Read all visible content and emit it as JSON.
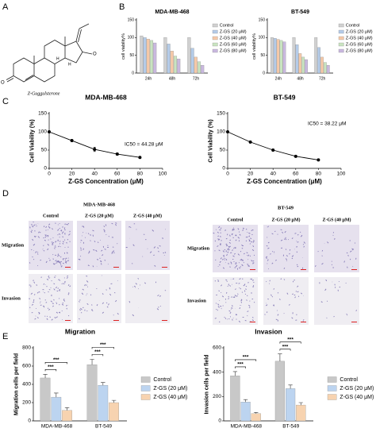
{
  "panel_labels": [
    "A",
    "B",
    "C",
    "D",
    "E"
  ],
  "structure": {
    "caption": "Z-Guggulsterone",
    "atoms": [
      "O",
      "O",
      "H",
      "H"
    ]
  },
  "micrographs": [
    {
      "title": "MDA-MB-468",
      "columns": [
        "Control",
        "Z-GS (20 μM)",
        "Z-GS (40 μM)"
      ],
      "rows": [
        "Migration",
        "Invasion"
      ]
    },
    {
      "title": "BT-549",
      "columns": [
        "Control",
        "Z-GS (20 μM)",
        "Z-GS (40 μM)"
      ],
      "rows": [
        "Migration",
        "Invasion"
      ]
    }
  ],
  "chart_data": [
    {
      "type": "bar",
      "title": "MDA-MB-468",
      "y_label": "cell viability%",
      "categories": [
        "24h",
        "48h",
        "72h"
      ],
      "ylim": [
        0,
        150
      ],
      "yticks": [
        0,
        50,
        100,
        150
      ],
      "series": [
        {
          "name": "Control",
          "color": "#d0d0d0",
          "values": [
            105,
            100,
            100
          ]
        },
        {
          "name": "Z-GS (20 μM)",
          "color": "#b4cbe8",
          "values": [
            100,
            82,
            70
          ]
        },
        {
          "name": "Z-GS (40 μM)",
          "color": "#f6c9a8",
          "values": [
            96,
            62,
            45
          ]
        },
        {
          "name": "Z-GS (60 μM)",
          "color": "#c9e4c0",
          "values": [
            92,
            48,
            32
          ]
        },
        {
          "name": "Z-GS (80 μM)",
          "color": "#c9b8df",
          "values": [
            85,
            40,
            22
          ]
        }
      ]
    },
    {
      "type": "bar",
      "title": "BT-549",
      "y_label": "cell viability%",
      "categories": [
        "24h",
        "48h",
        "72h"
      ],
      "ylim": [
        0,
        150
      ],
      "yticks": [
        0,
        50,
        100,
        150
      ],
      "series": [
        {
          "name": "Control",
          "color": "#d0d0d0",
          "values": [
            100,
            100,
            100
          ]
        },
        {
          "name": "Z-GS (20 μM)",
          "color": "#b4cbe8",
          "values": [
            98,
            80,
            72
          ]
        },
        {
          "name": "Z-GS (40 μM)",
          "color": "#f6c9a8",
          "values": [
            95,
            55,
            45
          ]
        },
        {
          "name": "Z-GS (60 μM)",
          "color": "#c9e4c0",
          "values": [
            92,
            45,
            30
          ]
        },
        {
          "name": "Z-GS (80 μM)",
          "color": "#c9b8df",
          "values": [
            88,
            38,
            22
          ]
        }
      ]
    },
    {
      "type": "line",
      "title": "MDA-MB-468",
      "x_label": "Z-GS Concentration (μM)",
      "y_label": "Cell Viability (%)",
      "annotation": "IC50 = 44.28 μM",
      "color": "#000000",
      "x": [
        0,
        20,
        40,
        60,
        80
      ],
      "values": [
        100,
        76,
        52,
        39,
        30
      ],
      "errors": [
        0,
        3,
        6,
        3,
        2
      ],
      "xlim": [
        0,
        100
      ],
      "xticks": [
        0,
        20,
        40,
        60,
        80,
        100
      ],
      "ylim": [
        0,
        150
      ],
      "yticks": [
        0,
        50,
        100,
        150
      ]
    },
    {
      "type": "line",
      "title": "BT-549",
      "x_label": "Z-GS Concentration (μM)",
      "y_label": "Cell Viability (%)",
      "annotation": "IC50 = 38.22 μM",
      "color": "#000000",
      "x": [
        0,
        20,
        40,
        60,
        80
      ],
      "values": [
        100,
        72,
        50,
        33,
        23
      ],
      "errors": [
        0,
        2,
        3,
        2,
        2
      ],
      "xlim": [
        0,
        100
      ],
      "xticks": [
        0,
        20,
        40,
        60,
        80,
        100
      ],
      "ylim": [
        0,
        150
      ],
      "yticks": [
        0,
        50,
        100,
        150
      ]
    },
    {
      "type": "bar",
      "title": "Migration",
      "y_label": "Migration cells per field",
      "categories": [
        "MDA-MB-468",
        "BT-549"
      ],
      "ylim": [
        0,
        800
      ],
      "yticks": [
        0,
        200,
        400,
        600,
        800
      ],
      "annotations": [
        "***",
        "***",
        "***",
        "***"
      ],
      "series": [
        {
          "name": "Control",
          "color": "#c8c8c8",
          "values": [
            470,
            615
          ],
          "errors": [
            40,
            60
          ]
        },
        {
          "name": "Z-GS (20 μM)",
          "color": "#bcd4f0",
          "values": [
            260,
            390
          ],
          "errors": [
            45,
            30
          ]
        },
        {
          "name": "Z-GS (40 μM)",
          "color": "#f7d3b0",
          "values": [
            115,
            200
          ],
          "errors": [
            30,
            25
          ]
        }
      ]
    },
    {
      "type": "bar",
      "title": "Invasion",
      "y_label": "Invasion cells per field",
      "categories": [
        "MDA-MB-468",
        "BT-549"
      ],
      "ylim": [
        0,
        600
      ],
      "yticks": [
        0,
        200,
        400,
        600
      ],
      "annotations": [
        "***",
        "***",
        "***",
        "***"
      ],
      "series": [
        {
          "name": "Control",
          "color": "#c8c8c8",
          "values": [
            370,
            490
          ],
          "errors": [
            35,
            60
          ]
        },
        {
          "name": "Z-GS (20 μM)",
          "color": "#bcd4f0",
          "values": [
            155,
            265
          ],
          "errors": [
            20,
            30
          ]
        },
        {
          "name": "Z-GS (40 μM)",
          "color": "#f7d3b0",
          "values": [
            60,
            130
          ],
          "errors": [
            10,
            20
          ]
        }
      ]
    }
  ]
}
